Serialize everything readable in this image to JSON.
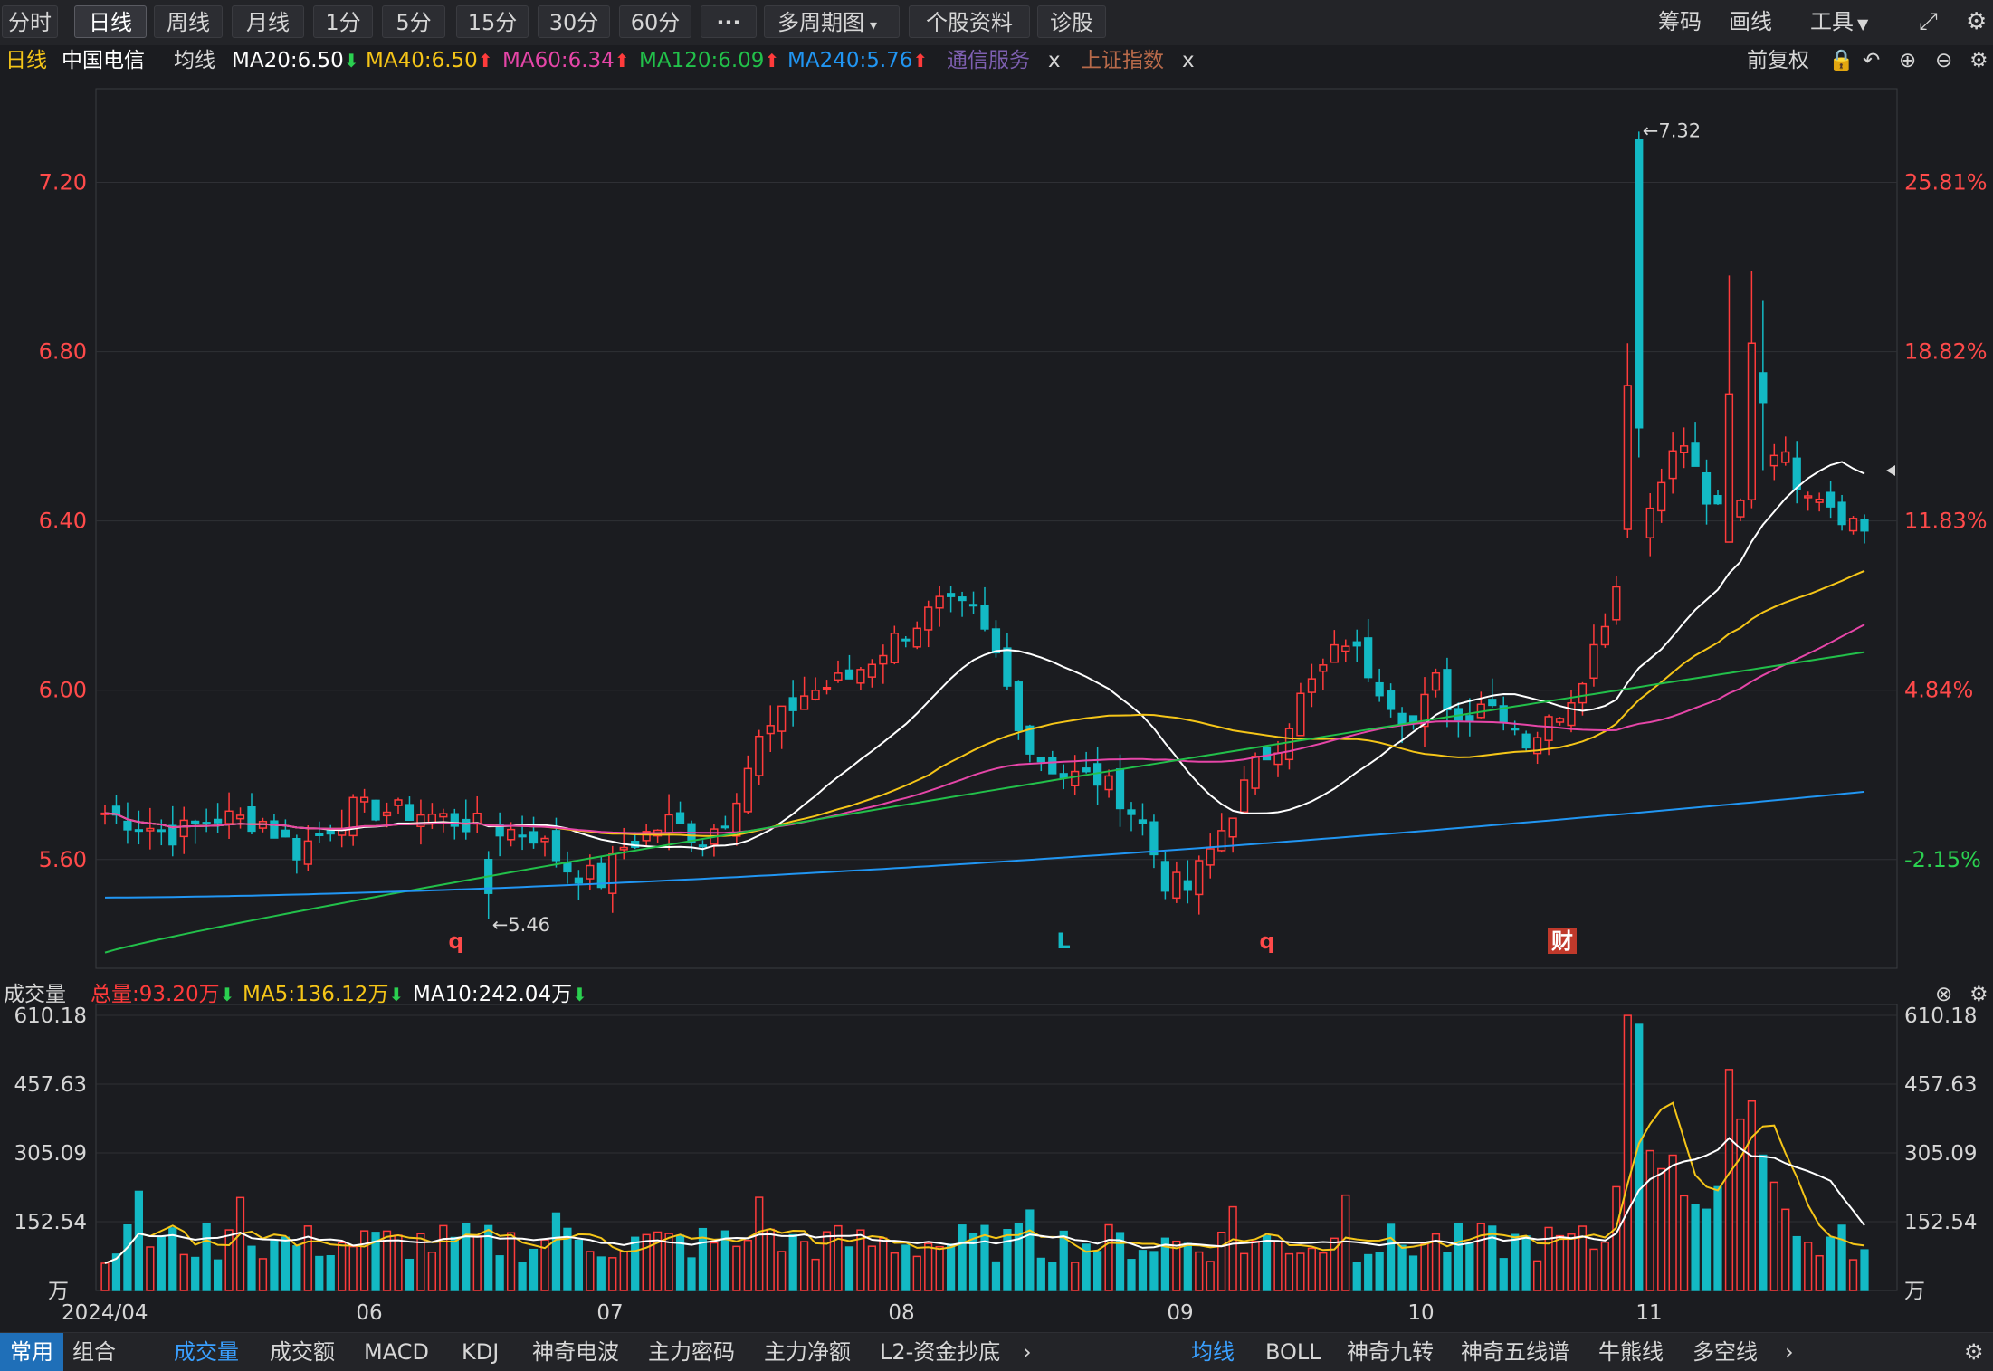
{
  "toolbar": {
    "periods": [
      "分时",
      "日线",
      "周线",
      "月线",
      "1分",
      "5分",
      "15分",
      "30分",
      "60分"
    ],
    "active_period": "日线",
    "more_label": "···",
    "multi_period_label": "多周期图",
    "stock_info_label": "个股资料",
    "diagnose_label": "诊股",
    "chips_label": "筹码",
    "draw_label": "画线",
    "tools_label": "工具"
  },
  "info": {
    "period": "日线",
    "name": "中国电信",
    "ma_label": "均线",
    "ma20": "MA20:6.50",
    "ma40": "MA40:6.50",
    "ma60": "MA60:6.34",
    "ma120": "MA120:6.09",
    "ma240": "MA240:5.76",
    "sector": "通信服务",
    "index": "上证指数",
    "close_x": "x",
    "adjust": "前复权"
  },
  "price_axis": {
    "left_labels": [
      "7.20",
      "6.80",
      "6.40",
      "6.00",
      "5.60"
    ],
    "right_labels": [
      "25.81%",
      "18.82%",
      "11.83%",
      "4.84%",
      "-2.15%"
    ],
    "max_mark": "←7.32",
    "min_mark": "←5.46",
    "signals": [
      "q",
      "L",
      "q",
      "财"
    ]
  },
  "volume": {
    "title": "成交量",
    "total": "总量:93.20万",
    "ma5": "MA5:136.12万",
    "ma10": "MA10:242.04万",
    "axis_labels": [
      "610.18",
      "457.63",
      "305.09",
      "152.54"
    ],
    "unit": "万"
  },
  "date_labels": [
    "2024/04",
    "06",
    "07",
    "08",
    "09",
    "10",
    "11"
  ],
  "bottom": {
    "left_tabs": [
      "常用",
      "组合"
    ],
    "indicator_tabs": [
      "成交量",
      "成交额",
      "MACD",
      "KDJ",
      "神奇电波",
      "主力密码",
      "主力净额",
      "L2-资金抄底"
    ],
    "overlay_tabs": [
      "均线",
      "BOLL",
      "神奇九转",
      "神奇五线谱",
      "牛熊线",
      "多空线"
    ]
  },
  "colors": {
    "up": "#ff3b3b",
    "down": "#13b9c4",
    "ma20": "#ffffff",
    "ma40": "#f5c518",
    "ma60": "#e646a8",
    "ma120": "#22c04a",
    "ma240": "#2196f3"
  },
  "chart_data": {
    "type": "candlestick",
    "title": "中国电信 日线",
    "price_range": [
      5.36,
      7.4
    ],
    "percent_labels": [
      "25.81%",
      "18.82%",
      "11.83%",
      "4.84%",
      "-2.15%"
    ],
    "max_price": 7.32,
    "min_price": 5.46,
    "volume_range": [
      0,
      610.18
    ],
    "volume_unit": "万",
    "ma_series": {
      "MA20_last": 6.5,
      "MA40_last": 6.5,
      "MA60_last": 6.34,
      "MA120_last": 6.09,
      "MA240_last": 5.76
    },
    "x_axis_months": [
      "2024/04",
      "06",
      "07",
      "08",
      "09",
      "10",
      "11"
    ]
  }
}
